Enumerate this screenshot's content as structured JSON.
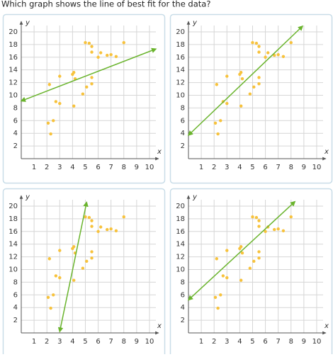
{
  "question": "Which graph shows the line of best fit for the data?",
  "chart_data": [
    {
      "type": "scatter",
      "x_label": "x",
      "y_label": "y",
      "xlim": [
        0,
        10.5
      ],
      "ylim": [
        0,
        21
      ],
      "xticks": [
        1,
        2,
        3,
        4,
        5,
        6,
        7,
        8,
        9,
        10
      ],
      "yticks": [
        2,
        4,
        6,
        8,
        10,
        12,
        14,
        16,
        18,
        20
      ],
      "grid": true,
      "point_color": "#f7c23c",
      "x": [
        2.2,
        2.1,
        2.5,
        2.3,
        2.7,
        3,
        3,
        4,
        4.1,
        4.1,
        4.2,
        4.8,
        5,
        5.1,
        5.3,
        5.5,
        5.5,
        5.5,
        5.5,
        6,
        6.2,
        6.7,
        7,
        7.4,
        8
      ],
      "y": [
        11.7,
        5.6,
        6,
        3.9,
        9,
        8.7,
        13,
        13.3,
        13.6,
        8.3,
        12.6,
        10.2,
        18.3,
        11.3,
        18.2,
        17.7,
        16.8,
        12.8,
        11.8,
        16,
        16.7,
        16.3,
        16.4,
        16.1,
        18.3
      ],
      "line": {
        "x": [
          0,
          10.5
        ],
        "y": [
          9.1,
          17.3
        ],
        "color": "#6ab42d"
      }
    },
    {
      "type": "scatter",
      "x_label": "x",
      "y_label": "y",
      "xlim": [
        0,
        10.5
      ],
      "ylim": [
        0,
        21
      ],
      "xticks": [
        1,
        2,
        3,
        4,
        5,
        6,
        7,
        8,
        9,
        10
      ],
      "yticks": [
        2,
        4,
        6,
        8,
        10,
        12,
        14,
        16,
        18,
        20
      ],
      "grid": true,
      "point_color": "#f7c23c",
      "x": [
        2.2,
        2.1,
        2.5,
        2.3,
        2.7,
        3,
        3,
        4,
        4.1,
        4.1,
        4.2,
        4.8,
        5,
        5.1,
        5.3,
        5.5,
        5.5,
        5.5,
        5.5,
        6,
        6.2,
        6.7,
        7,
        7.4,
        8
      ],
      "y": [
        11.7,
        5.6,
        6,
        3.9,
        9,
        8.7,
        13,
        13.3,
        13.6,
        8.3,
        12.6,
        10.2,
        18.3,
        11.3,
        18.2,
        17.7,
        16.8,
        12.8,
        11.8,
        16,
        16.7,
        16.3,
        16.4,
        16.1,
        18.3
      ],
      "line": {
        "x": [
          0,
          8.9
        ],
        "y": [
          3.7,
          20.9
        ],
        "color": "#6ab42d"
      }
    },
    {
      "type": "scatter",
      "x_label": "x",
      "y_label": "y",
      "xlim": [
        0,
        10.5
      ],
      "ylim": [
        0,
        21
      ],
      "xticks": [
        1,
        2,
        3,
        4,
        5,
        6,
        7,
        8,
        9,
        10
      ],
      "yticks": [
        2,
        4,
        6,
        8,
        10,
        12,
        14,
        16,
        18,
        20
      ],
      "grid": true,
      "point_color": "#f7c23c",
      "x": [
        2.2,
        2.1,
        2.5,
        2.3,
        2.7,
        3,
        3,
        4,
        4.1,
        4.1,
        4.2,
        4.8,
        5,
        5.1,
        5.3,
        5.5,
        5.5,
        5.5,
        5.5,
        6,
        6.2,
        6.7,
        7,
        7.4,
        8
      ],
      "y": [
        11.7,
        5.6,
        6,
        3.9,
        9,
        8.7,
        13,
        13.3,
        13.6,
        8.3,
        12.6,
        10.2,
        18.3,
        11.3,
        18.2,
        17.7,
        16.8,
        12.8,
        11.8,
        16,
        16.7,
        16.3,
        16.4,
        16.1,
        18.3
      ],
      "line": {
        "x": [
          3,
          5.1
        ],
        "y": [
          0.2,
          20.6
        ],
        "color": "#6ab42d"
      }
    },
    {
      "type": "scatter",
      "x_label": "x",
      "y_label": "y",
      "xlim": [
        0,
        10.5
      ],
      "ylim": [
        0,
        21
      ],
      "xticks": [
        1,
        2,
        3,
        4,
        5,
        6,
        7,
        8,
        9,
        10
      ],
      "yticks": [
        2,
        4,
        6,
        8,
        10,
        12,
        14,
        16,
        18,
        20
      ],
      "grid": true,
      "point_color": "#f7c23c",
      "x": [
        2.2,
        2.1,
        2.5,
        2.3,
        2.7,
        3,
        3,
        4,
        4.1,
        4.1,
        4.2,
        4.8,
        5,
        5.1,
        5.3,
        5.5,
        5.5,
        5.5,
        5.5,
        6,
        6.2,
        6.7,
        7,
        7.4,
        8
      ],
      "y": [
        11.7,
        5.6,
        6,
        3.9,
        9,
        8.7,
        13,
        13.3,
        13.6,
        8.3,
        12.6,
        10.2,
        18.3,
        11.3,
        18.2,
        17.7,
        16.8,
        12.8,
        11.8,
        16,
        16.7,
        16.3,
        16.4,
        16.1,
        18.3
      ],
      "line": {
        "x": [
          0,
          8.3
        ],
        "y": [
          5.2,
          20.7
        ],
        "color": "#6ab42d"
      }
    }
  ]
}
